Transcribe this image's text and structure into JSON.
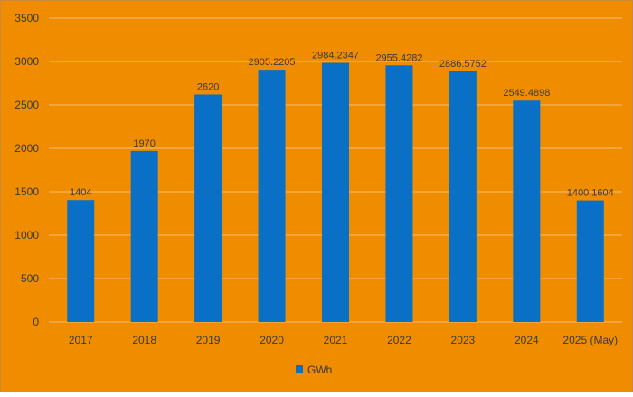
{
  "chart_data": {
    "type": "bar",
    "categories": [
      "2017",
      "2018",
      "2019",
      "2020",
      "2021",
      "2022",
      "2023",
      "2024",
      "2025 (May)"
    ],
    "series": [
      {
        "name": "GWh",
        "values": [
          1404,
          1970,
          2620,
          2905.2205,
          2984.2347,
          2955.4282,
          2886.5752,
          2549.4898,
          1400.1604
        ],
        "data_labels": [
          "1404",
          "1970",
          "2620",
          "2905.2205",
          "2984.2347",
          "2955.4282",
          "2886.5752",
          "2549.4898",
          "1400.1604"
        ]
      }
    ],
    "title": "",
    "xlabel": "",
    "ylabel": "",
    "ylim": [
      0,
      3500
    ],
    "yticks": [
      0,
      500,
      1000,
      1500,
      2000,
      2500,
      3000,
      3500
    ],
    "grid": true,
    "legend_position": "bottom"
  },
  "colors": {
    "background": "#F08C00",
    "border": "#C98A3A",
    "bar": "#0A70C6",
    "gridline": "#F6BE74",
    "text": "#3A3A3A"
  }
}
